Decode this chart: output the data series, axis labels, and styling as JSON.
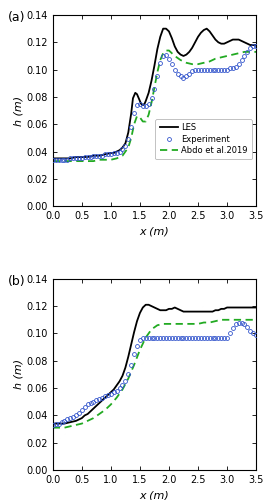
{
  "panel_a": {
    "les_x": [
      0.0,
      0.1,
      0.2,
      0.3,
      0.4,
      0.5,
      0.6,
      0.7,
      0.8,
      0.9,
      1.0,
      1.05,
      1.1,
      1.15,
      1.2,
      1.25,
      1.3,
      1.35,
      1.38,
      1.42,
      1.45,
      1.48,
      1.5,
      1.52,
      1.55,
      1.58,
      1.6,
      1.65,
      1.7,
      1.75,
      1.8,
      1.85,
      1.9,
      1.95,
      2.0,
      2.05,
      2.1,
      2.15,
      2.2,
      2.25,
      2.3,
      2.35,
      2.4,
      2.45,
      2.5,
      2.55,
      2.6,
      2.65,
      2.7,
      2.75,
      2.8,
      2.85,
      2.9,
      2.95,
      3.0,
      3.05,
      3.1,
      3.15,
      3.2,
      3.25,
      3.3,
      3.35,
      3.4,
      3.45,
      3.5
    ],
    "les_y": [
      0.035,
      0.035,
      0.035,
      0.035,
      0.036,
      0.036,
      0.036,
      0.037,
      0.037,
      0.038,
      0.039,
      0.039,
      0.04,
      0.041,
      0.043,
      0.046,
      0.054,
      0.068,
      0.079,
      0.083,
      0.082,
      0.079,
      0.077,
      0.075,
      0.074,
      0.075,
      0.077,
      0.083,
      0.092,
      0.103,
      0.115,
      0.124,
      0.13,
      0.13,
      0.128,
      0.123,
      0.117,
      0.113,
      0.111,
      0.11,
      0.111,
      0.113,
      0.116,
      0.12,
      0.124,
      0.127,
      0.129,
      0.13,
      0.128,
      0.125,
      0.122,
      0.12,
      0.119,
      0.119,
      0.12,
      0.121,
      0.122,
      0.122,
      0.122,
      0.121,
      0.12,
      0.119,
      0.118,
      0.118,
      0.118
    ],
    "exp_x": [
      0.0,
      0.05,
      0.1,
      0.15,
      0.2,
      0.25,
      0.3,
      0.35,
      0.4,
      0.45,
      0.5,
      0.55,
      0.6,
      0.65,
      0.7,
      0.75,
      0.8,
      0.85,
      0.9,
      0.95,
      1.0,
      1.05,
      1.1,
      1.15,
      1.2,
      1.25,
      1.3,
      1.35,
      1.4,
      1.45,
      1.5,
      1.55,
      1.6,
      1.65,
      1.7,
      1.75,
      1.8,
      1.85,
      1.9,
      1.95,
      2.0,
      2.05,
      2.1,
      2.15,
      2.2,
      2.25,
      2.3,
      2.35,
      2.4,
      2.45,
      2.5,
      2.55,
      2.6,
      2.65,
      2.7,
      2.75,
      2.8,
      2.85,
      2.9,
      2.95,
      3.0,
      3.05,
      3.1,
      3.15,
      3.2,
      3.25,
      3.3,
      3.35,
      3.4,
      3.45,
      3.5
    ],
    "exp_y": [
      0.034,
      0.034,
      0.034,
      0.034,
      0.034,
      0.034,
      0.035,
      0.035,
      0.035,
      0.035,
      0.035,
      0.036,
      0.036,
      0.036,
      0.037,
      0.037,
      0.037,
      0.037,
      0.038,
      0.038,
      0.038,
      0.039,
      0.039,
      0.04,
      0.042,
      0.044,
      0.049,
      0.058,
      0.068,
      0.074,
      0.075,
      0.073,
      0.073,
      0.075,
      0.079,
      0.086,
      0.095,
      0.105,
      0.11,
      0.111,
      0.108,
      0.104,
      0.1,
      0.097,
      0.095,
      0.094,
      0.095,
      0.097,
      0.099,
      0.1,
      0.1,
      0.1,
      0.1,
      0.1,
      0.1,
      0.1,
      0.1,
      0.1,
      0.1,
      0.1,
      0.1,
      0.101,
      0.101,
      0.102,
      0.104,
      0.107,
      0.11,
      0.113,
      0.116,
      0.117,
      0.117
    ],
    "rans_x": [
      0.0,
      0.1,
      0.2,
      0.3,
      0.4,
      0.5,
      0.6,
      0.7,
      0.8,
      0.9,
      1.0,
      1.1,
      1.2,
      1.3,
      1.35,
      1.4,
      1.45,
      1.5,
      1.55,
      1.6,
      1.65,
      1.7,
      1.75,
      1.8,
      1.85,
      1.9,
      1.95,
      2.0,
      2.1,
      2.2,
      2.3,
      2.4,
      2.5,
      2.6,
      2.7,
      2.8,
      2.9,
      3.0,
      3.1,
      3.2,
      3.3,
      3.4,
      3.5
    ],
    "rans_y": [
      0.033,
      0.033,
      0.033,
      0.033,
      0.033,
      0.033,
      0.033,
      0.033,
      0.034,
      0.034,
      0.034,
      0.035,
      0.037,
      0.043,
      0.05,
      0.06,
      0.066,
      0.065,
      0.062,
      0.062,
      0.067,
      0.076,
      0.087,
      0.098,
      0.107,
      0.112,
      0.114,
      0.114,
      0.11,
      0.107,
      0.105,
      0.104,
      0.104,
      0.105,
      0.106,
      0.108,
      0.109,
      0.11,
      0.111,
      0.112,
      0.113,
      0.113,
      0.113
    ]
  },
  "panel_b": {
    "les_x": [
      0.0,
      0.1,
      0.2,
      0.3,
      0.4,
      0.5,
      0.55,
      0.6,
      0.65,
      0.7,
      0.75,
      0.8,
      0.85,
      0.9,
      0.95,
      1.0,
      1.05,
      1.1,
      1.15,
      1.2,
      1.25,
      1.3,
      1.35,
      1.4,
      1.45,
      1.5,
      1.55,
      1.6,
      1.65,
      1.7,
      1.75,
      1.8,
      1.85,
      1.9,
      1.95,
      2.0,
      2.05,
      2.1,
      2.15,
      2.2,
      2.25,
      2.3,
      2.35,
      2.4,
      2.45,
      2.5,
      2.55,
      2.6,
      2.65,
      2.7,
      2.75,
      2.8,
      2.85,
      2.9,
      2.95,
      3.0,
      3.05,
      3.1,
      3.15,
      3.2,
      3.25,
      3.3,
      3.35,
      3.4,
      3.45,
      3.5
    ],
    "les_y": [
      0.034,
      0.034,
      0.034,
      0.035,
      0.036,
      0.038,
      0.04,
      0.041,
      0.043,
      0.045,
      0.047,
      0.049,
      0.051,
      0.053,
      0.055,
      0.057,
      0.059,
      0.062,
      0.065,
      0.069,
      0.075,
      0.083,
      0.092,
      0.101,
      0.109,
      0.115,
      0.119,
      0.121,
      0.121,
      0.12,
      0.119,
      0.118,
      0.117,
      0.117,
      0.117,
      0.118,
      0.118,
      0.119,
      0.118,
      0.117,
      0.116,
      0.116,
      0.116,
      0.116,
      0.116,
      0.116,
      0.116,
      0.116,
      0.116,
      0.116,
      0.116,
      0.117,
      0.117,
      0.118,
      0.118,
      0.119,
      0.119,
      0.119,
      0.119,
      0.119,
      0.119,
      0.119,
      0.119,
      0.119,
      0.119,
      0.119
    ],
    "exp_x": [
      0.0,
      0.05,
      0.1,
      0.15,
      0.2,
      0.25,
      0.3,
      0.35,
      0.4,
      0.45,
      0.5,
      0.55,
      0.6,
      0.65,
      0.7,
      0.75,
      0.8,
      0.85,
      0.9,
      0.95,
      1.0,
      1.05,
      1.1,
      1.15,
      1.2,
      1.25,
      1.3,
      1.35,
      1.4,
      1.45,
      1.5,
      1.55,
      1.6,
      1.65,
      1.7,
      1.75,
      1.8,
      1.85,
      1.9,
      1.95,
      2.0,
      2.05,
      2.1,
      2.15,
      2.2,
      2.25,
      2.3,
      2.35,
      2.4,
      2.45,
      2.5,
      2.55,
      2.6,
      2.65,
      2.7,
      2.75,
      2.8,
      2.85,
      2.9,
      2.95,
      3.0,
      3.05,
      3.1,
      3.15,
      3.2,
      3.25,
      3.3,
      3.35,
      3.4,
      3.45,
      3.5
    ],
    "exp_y": [
      0.033,
      0.034,
      0.034,
      0.035,
      0.036,
      0.037,
      0.038,
      0.039,
      0.04,
      0.042,
      0.044,
      0.046,
      0.048,
      0.049,
      0.05,
      0.051,
      0.052,
      0.053,
      0.054,
      0.055,
      0.056,
      0.057,
      0.058,
      0.06,
      0.062,
      0.065,
      0.07,
      0.077,
      0.085,
      0.091,
      0.095,
      0.097,
      0.097,
      0.097,
      0.097,
      0.097,
      0.097,
      0.097,
      0.097,
      0.097,
      0.097,
      0.097,
      0.097,
      0.097,
      0.097,
      0.097,
      0.097,
      0.097,
      0.097,
      0.097,
      0.097,
      0.097,
      0.097,
      0.097,
      0.097,
      0.097,
      0.097,
      0.097,
      0.097,
      0.097,
      0.097,
      0.1,
      0.104,
      0.107,
      0.108,
      0.108,
      0.107,
      0.105,
      0.102,
      0.1,
      0.099
    ],
    "rans_x": [
      0.0,
      0.1,
      0.2,
      0.3,
      0.4,
      0.5,
      0.6,
      0.7,
      0.8,
      0.9,
      1.0,
      1.1,
      1.2,
      1.3,
      1.4,
      1.5,
      1.6,
      1.7,
      1.8,
      1.9,
      2.0,
      2.1,
      2.2,
      2.3,
      2.4,
      2.5,
      2.6,
      2.7,
      2.8,
      2.9,
      3.0,
      3.1,
      3.2,
      3.3,
      3.4,
      3.5
    ],
    "rans_y": [
      0.031,
      0.031,
      0.031,
      0.032,
      0.033,
      0.034,
      0.036,
      0.038,
      0.041,
      0.044,
      0.048,
      0.053,
      0.059,
      0.067,
      0.077,
      0.088,
      0.097,
      0.103,
      0.106,
      0.107,
      0.107,
      0.107,
      0.107,
      0.107,
      0.107,
      0.107,
      0.108,
      0.108,
      0.109,
      0.11,
      0.11,
      0.11,
      0.11,
      0.11,
      0.11,
      0.11
    ]
  },
  "les_color": "#000000",
  "exp_color": "#3355cc",
  "rans_color": "#22aa22",
  "les_lw": 1.3,
  "rans_lw": 1.3,
  "exp_ms": 2.8,
  "xlim": [
    0.0,
    3.5
  ],
  "ylim": [
    0.0,
    0.14
  ],
  "xlabel": "x (m)",
  "ylabel": "h (m)",
  "legend_labels": [
    "LES",
    "Experiment",
    "Abdo et al.2019"
  ],
  "panel_labels": [
    "(a)",
    "(b)"
  ],
  "xticks": [
    0.0,
    0.5,
    1.0,
    1.5,
    2.0,
    2.5,
    3.0,
    3.5
  ],
  "yticks": [
    0.0,
    0.02,
    0.04,
    0.06,
    0.08,
    0.1,
    0.12,
    0.14
  ]
}
